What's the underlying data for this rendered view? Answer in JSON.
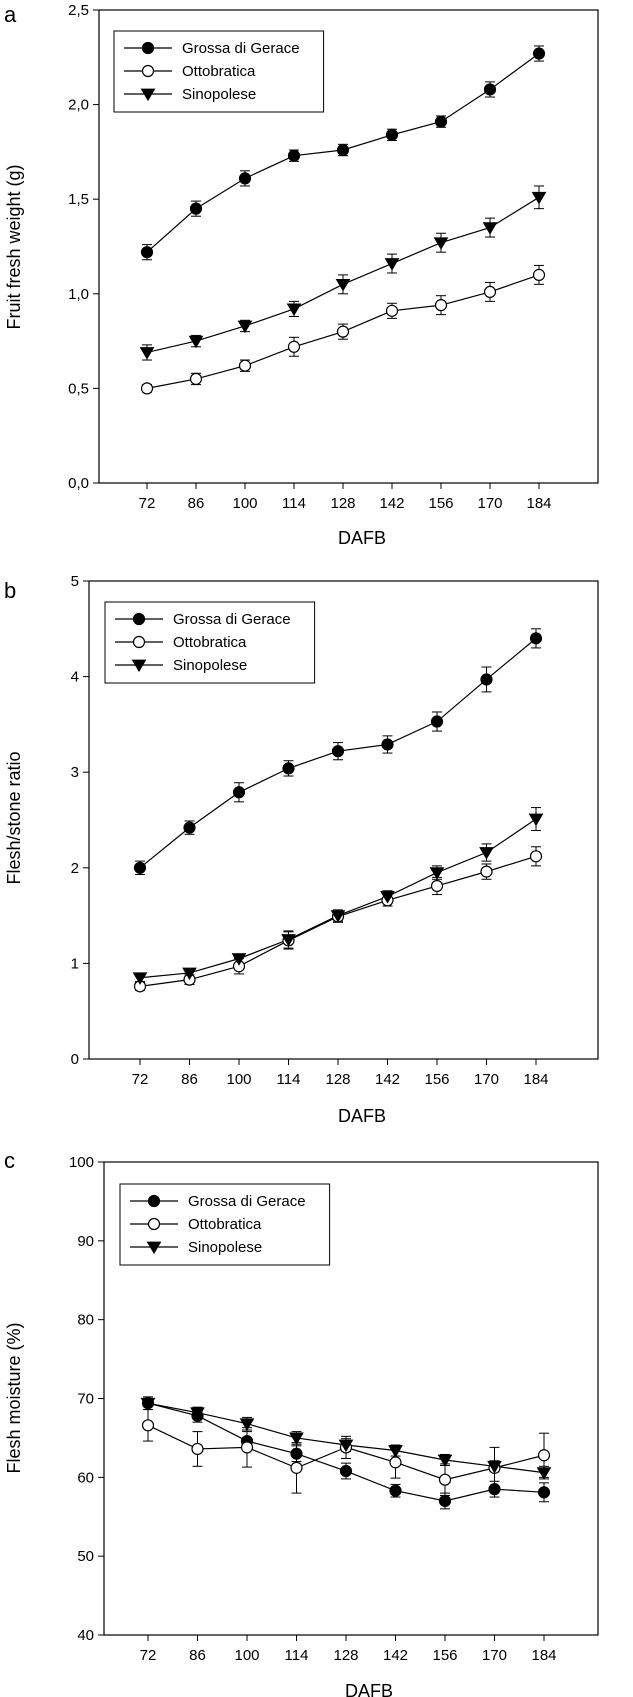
{
  "chart_data": [
    {
      "panel": "a",
      "type": "line",
      "xlabel": "DAFB",
      "ylabel": "Fruit fresh weight (g)",
      "ylim": [
        0,
        2.5
      ],
      "yticks": [
        "0,0",
        "0,5",
        "1,0",
        "1,5",
        "2,0",
        "2,5"
      ],
      "categories": [
        "72",
        "86",
        "100",
        "114",
        "128",
        "142",
        "156",
        "170",
        "184"
      ],
      "legend_position": "top-left",
      "series": [
        {
          "name": "Grossa di Gerace",
          "marker": "filled-circle",
          "values": [
            1.22,
            1.45,
            1.61,
            1.73,
            1.76,
            1.84,
            1.91,
            2.08,
            2.27
          ],
          "errors": [
            0.04,
            0.04,
            0.04,
            0.03,
            0.03,
            0.03,
            0.03,
            0.04,
            0.04
          ]
        },
        {
          "name": "Ottobratica",
          "marker": "open-circle",
          "values": [
            0.5,
            0.55,
            0.62,
            0.72,
            0.8,
            0.91,
            0.94,
            1.01,
            1.1
          ],
          "errors": [
            0.02,
            0.03,
            0.03,
            0.05,
            0.04,
            0.04,
            0.05,
            0.05,
            0.05
          ]
        },
        {
          "name": "Sinopolese",
          "marker": "filled-triangle-down",
          "values": [
            0.69,
            0.75,
            0.83,
            0.92,
            1.05,
            1.16,
            1.27,
            1.35,
            1.51
          ],
          "errors": [
            0.04,
            0.03,
            0.03,
            0.04,
            0.05,
            0.05,
            0.05,
            0.05,
            0.06
          ]
        }
      ]
    },
    {
      "panel": "b",
      "type": "line",
      "xlabel": "DAFB",
      "ylabel": "Flesh/stone ratio",
      "ylim": [
        0,
        5
      ],
      "yticks": [
        "0",
        "1",
        "2",
        "3",
        "4",
        "5"
      ],
      "categories": [
        "72",
        "86",
        "100",
        "114",
        "128",
        "142",
        "156",
        "170",
        "184"
      ],
      "legend_position": "top-left",
      "series": [
        {
          "name": "Grossa di Gerace",
          "marker": "filled-circle",
          "values": [
            2.0,
            2.42,
            2.79,
            3.04,
            3.22,
            3.29,
            3.53,
            3.97,
            4.4
          ],
          "errors": [
            0.07,
            0.07,
            0.1,
            0.08,
            0.09,
            0.09,
            0.1,
            0.13,
            0.1
          ]
        },
        {
          "name": "Ottobratica",
          "marker": "open-circle",
          "values": [
            0.76,
            0.83,
            0.97,
            1.24,
            1.49,
            1.66,
            1.81,
            1.96,
            2.12
          ],
          "errors": [
            0.04,
            0.05,
            0.08,
            0.09,
            0.06,
            0.06,
            0.09,
            0.08,
            0.1
          ]
        },
        {
          "name": "Sinopolese",
          "marker": "filled-triangle-down",
          "values": [
            0.85,
            0.9,
            1.05,
            1.25,
            1.5,
            1.7,
            1.95,
            2.16,
            2.51
          ],
          "errors": [
            0.04,
            0.04,
            0.05,
            0.09,
            0.06,
            0.06,
            0.07,
            0.09,
            0.12
          ]
        }
      ]
    },
    {
      "panel": "c",
      "type": "line",
      "xlabel": "DAFB",
      "ylabel": "Flesh moisture (%)",
      "ylim": [
        40,
        100
      ],
      "yticks": [
        "40",
        "50",
        "60",
        "70",
        "80",
        "90",
        "100"
      ],
      "categories": [
        "72",
        "86",
        "100",
        "114",
        "128",
        "142",
        "156",
        "170",
        "184"
      ],
      "legend_position": "top-left",
      "series": [
        {
          "name": "Grossa di Gerace",
          "marker": "filled-circle",
          "values": [
            69.4,
            67.8,
            64.6,
            63.0,
            60.8,
            58.3,
            57.0,
            58.5,
            58.1
          ],
          "errors": [
            0.8,
            0.8,
            1.2,
            1.0,
            1.0,
            0.8,
            1.0,
            1.0,
            1.2
          ]
        },
        {
          "name": "Ottobratica",
          "marker": "open-circle",
          "values": [
            66.6,
            63.6,
            63.8,
            61.2,
            63.8,
            61.9,
            59.7,
            61.2,
            62.8
          ],
          "errors": [
            2.0,
            2.2,
            2.5,
            3.2,
            1.4,
            2.0,
            2.0,
            2.6,
            2.8
          ]
        },
        {
          "name": "Sinopolese",
          "marker": "filled-triangle-down",
          "values": [
            69.4,
            68.2,
            66.8,
            65.0,
            64.1,
            63.4,
            62.2,
            61.4,
            60.6
          ],
          "errors": [
            0.8,
            0.7,
            0.8,
            0.8,
            0.8,
            0.7,
            0.7,
            0.7,
            0.8
          ]
        }
      ]
    }
  ]
}
